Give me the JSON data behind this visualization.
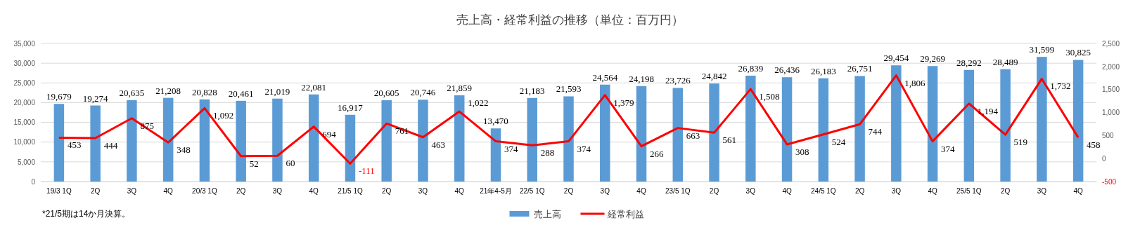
{
  "chart_data": {
    "type": "bar",
    "title": "売上高・経常利益の推移（単位：百万円）",
    "categories": [
      "19/3 1Q",
      "2Q",
      "3Q",
      "4Q",
      "20/3 1Q",
      "2Q",
      "3Q",
      "4Q",
      "21/5 1Q",
      "2Q",
      "3Q",
      "4Q",
      "21年4-5月",
      "22/5 1Q",
      "2Q",
      "3Q",
      "4Q",
      "23/5 1Q",
      "2Q",
      "3Q",
      "4Q",
      "24/5 1Q",
      "2Q",
      "3Q",
      "4Q",
      "25/5 1Q",
      "2Q",
      "3Q",
      "4Q"
    ],
    "series": [
      {
        "name": "売上高",
        "color": "#5b9bd5",
        "values": [
          19679,
          19274,
          20635,
          21208,
          20828,
          20461,
          21019,
          22081,
          16917,
          20605,
          20746,
          21859,
          13470,
          21183,
          21593,
          24564,
          24198,
          23726,
          24842,
          26839,
          26436,
          26183,
          26751,
          29454,
          29269,
          28292,
          28489,
          31599,
          30825
        ],
        "value_labels": [
          "19,679",
          "19,274",
          "20,635",
          "21,208",
          "20,828",
          "20,461",
          "21,019",
          "22,081",
          "16,917",
          "20,605",
          "20,746",
          "21,859",
          "13,470",
          "21,183",
          "21,593",
          "24,564",
          "24,198",
          "23,726",
          "24,842",
          "26,839",
          "26,436",
          "26,183",
          "26,751",
          "29,454",
          "29,269",
          "28,292",
          "28,489",
          "31,599",
          "30,825"
        ]
      },
      {
        "name": "経常利益",
        "type": "line",
        "axis": "y2",
        "color": "#ff0000",
        "values": [
          453,
          444,
          875,
          348,
          1092,
          52,
          60,
          694,
          -111,
          761,
          463,
          1022,
          374,
          288,
          374,
          1379,
          266,
          663,
          561,
          1508,
          308,
          524,
          744,
          1806,
          374,
          1194,
          519,
          1732,
          458
        ],
        "value_labels": [
          "453",
          "444",
          "875",
          "348",
          "1,092",
          "52",
          "60",
          "694",
          "-111",
          "761",
          "463",
          "1,022",
          "374",
          "288",
          "374",
          "1,379",
          "266",
          "663",
          "561",
          "1,508",
          "308",
          "524",
          "744",
          "1,806",
          "374",
          "1,194",
          "519",
          "1,732",
          "458"
        ]
      }
    ],
    "ylim": [
      0,
      35000
    ],
    "yticks": [
      0,
      {
        "value": 5000,
        "label": "5,000"
      },
      {
        "value": 10000,
        "label": "10,000"
      },
      {
        "value": 15000,
        "label": "15,000"
      },
      {
        "value": 20000,
        "label": "20,000"
      },
      {
        "value": 25000,
        "label": "25,000"
      },
      {
        "value": 30000,
        "label": "30,000"
      },
      {
        "value": 35000,
        "label": "35,000"
      }
    ],
    "y2lim": [
      -500,
      2500
    ],
    "y2ticks": [
      -500,
      0,
      500,
      {
        "value": 1000,
        "label": "1,000"
      },
      {
        "value": 1500,
        "label": "1,500"
      },
      {
        "value": 2000,
        "label": "2,000"
      },
      {
        "value": 2500,
        "label": "2,500"
      }
    ],
    "grid": "y",
    "legend": "bottom",
    "marker": "none",
    "line_style": "solid",
    "annotations": [
      "*21/5期は14か月決算。"
    ]
  }
}
